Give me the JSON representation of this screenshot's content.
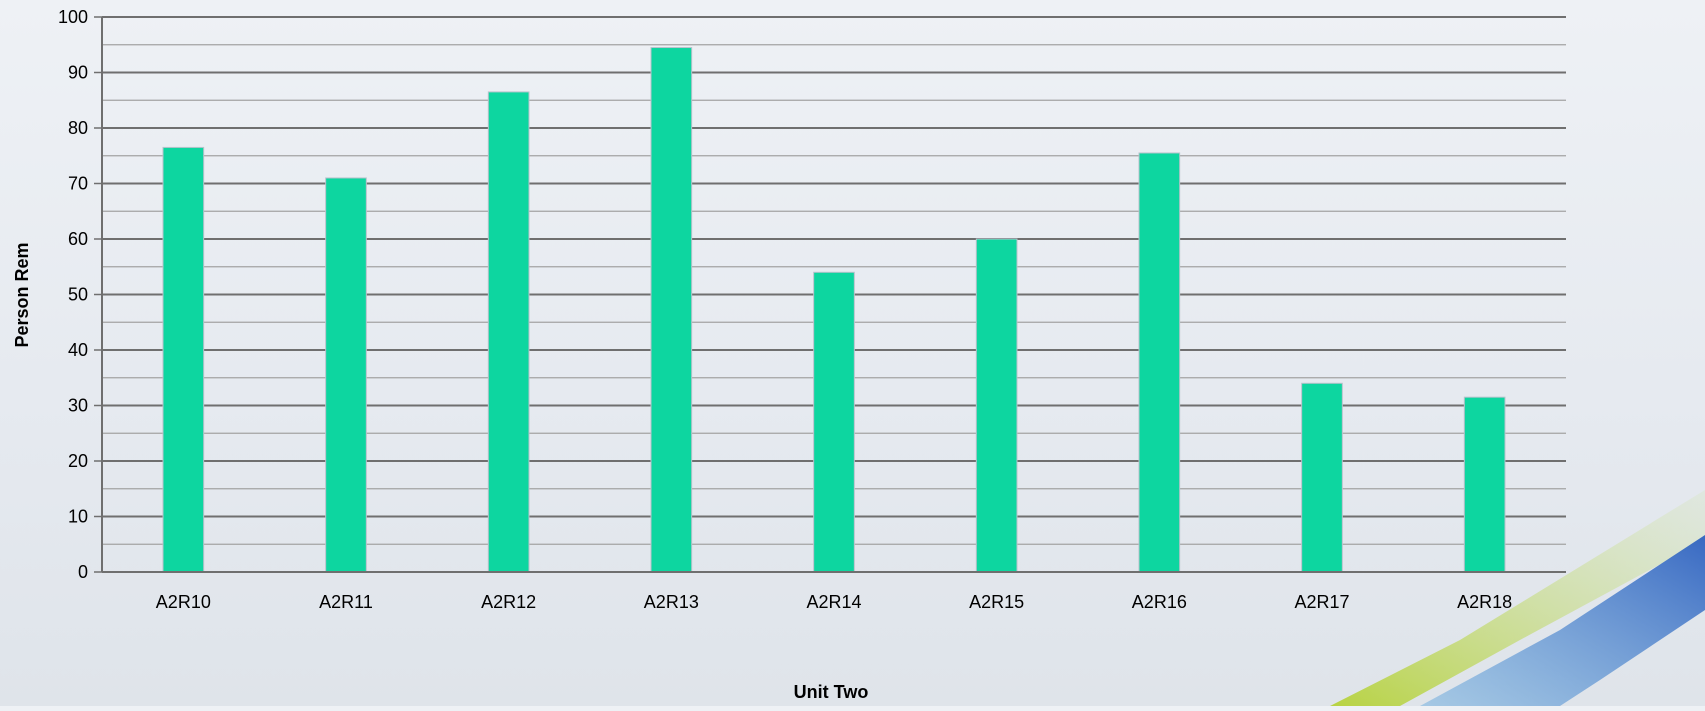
{
  "chart_data": {
    "type": "bar",
    "title": "",
    "xlabel": "Unit Two",
    "ylabel": "Person Rem",
    "categories": [
      "A2R10",
      "A2R11",
      "A2R12",
      "A2R13",
      "A2R14",
      "A2R15",
      "A2R16",
      "A2R17",
      "A2R18"
    ],
    "values": [
      76.5,
      71,
      86.5,
      94.5,
      54,
      60,
      75.5,
      34,
      31.5
    ],
    "ylim": [
      0,
      100
    ],
    "yticks": [
      "0",
      "10",
      "20",
      "30",
      "40",
      "50",
      "60",
      "70",
      "80",
      "90",
      "100"
    ],
    "grid": true,
    "legend": "none",
    "colors": {
      "bar": "#0dd6a0",
      "grid": "#7f7f7f",
      "accent_green": "#a8cc3a",
      "accent_blue": "#3d6fc4"
    }
  }
}
